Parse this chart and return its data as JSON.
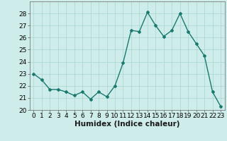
{
  "x": [
    0,
    1,
    2,
    3,
    4,
    5,
    6,
    7,
    8,
    9,
    10,
    11,
    12,
    13,
    14,
    15,
    16,
    17,
    18,
    19,
    20,
    21,
    22,
    23
  ],
  "y": [
    23.0,
    22.5,
    21.7,
    21.7,
    21.5,
    21.2,
    21.5,
    20.9,
    21.5,
    21.1,
    22.0,
    23.9,
    26.6,
    26.5,
    28.1,
    27.0,
    26.1,
    26.6,
    28.0,
    26.5,
    25.5,
    24.5,
    21.5,
    20.3
  ],
  "line_color": "#1a7a6e",
  "marker": "D",
  "marker_size": 2.0,
  "linewidth": 1.0,
  "background_color": "#ceecea",
  "grid_color": "#aed8d4",
  "xlabel": "Humidex (Indice chaleur)",
  "xlabel_fontsize": 7.5,
  "ylim": [
    20,
    29
  ],
  "xlim": [
    -0.5,
    23.5
  ],
  "yticks": [
    20,
    21,
    22,
    23,
    24,
    25,
    26,
    27,
    28
  ],
  "xticks": [
    0,
    1,
    2,
    3,
    4,
    5,
    6,
    7,
    8,
    9,
    10,
    11,
    12,
    13,
    14,
    15,
    16,
    17,
    18,
    19,
    20,
    21,
    22,
    23
  ],
  "tick_fontsize": 6.5
}
